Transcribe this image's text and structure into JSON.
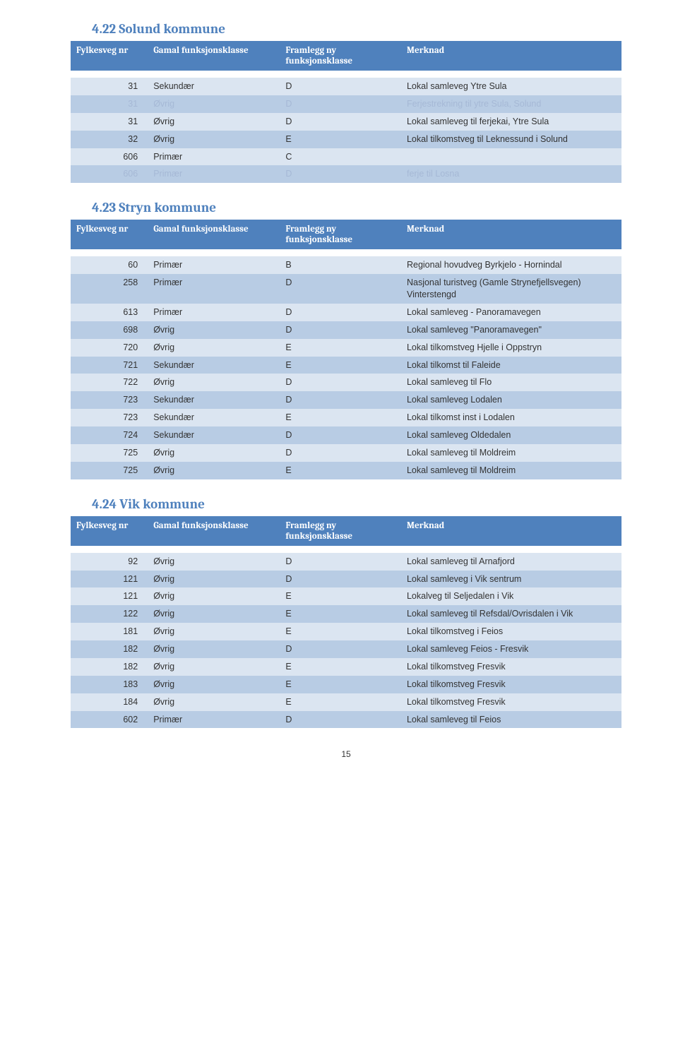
{
  "colors": {
    "header_bg": "#4f81bd",
    "header_text": "#ffffff",
    "row_odd_bg": "#dbe5f1",
    "row_even_bg": "#b8cce4",
    "muted_text": "#a6b9d6",
    "title_color": "#4f81bd",
    "body_bg": "#ffffff"
  },
  "typography": {
    "title_fontsize": 19,
    "header_fontsize": 13,
    "cell_fontsize": 12.5
  },
  "page_number": "15",
  "columns": [
    {
      "key": "nr",
      "label": "Fylkesveg\nnr",
      "width": "14%"
    },
    {
      "key": "gamal",
      "label": "Gamal\nfunksjonsklasse",
      "width": "24%"
    },
    {
      "key": "framlegg",
      "label": "Framlegg ny\nfunksjonsklasse",
      "width": "22%"
    },
    {
      "key": "merknad",
      "label": "Merknad",
      "width": "40%"
    }
  ],
  "column_headers": {
    "h1": "Fylkesveg nr",
    "h2": "Gamal funksjonsklasse",
    "h3": "Framlegg ny funksjonsklasse",
    "h4": "Merknad"
  },
  "sections": {
    "s1": {
      "title": "4.22 Solund kommune",
      "rows": [
        {
          "nr": "31",
          "gamal": "Sekundær",
          "framlegg": "D",
          "merknad": "Lokal samleveg Ytre Sula",
          "odd": true
        },
        {
          "nr": "31",
          "gamal": "Øvrig",
          "framlegg": "D",
          "merknad": "Ferjestrekning til ytre Sula, Solund",
          "odd": false,
          "muted": true
        },
        {
          "nr": "31",
          "gamal": "Øvrig",
          "framlegg": "D",
          "merknad": "Lokal samleveg til ferjekai, Ytre Sula",
          "odd": true
        },
        {
          "nr": "32",
          "gamal": "Øvrig",
          "framlegg": "E",
          "merknad": "Lokal tilkomstveg til Leknessund i Solund",
          "odd": false
        },
        {
          "nr": "606",
          "gamal": "Primær",
          "framlegg": "C",
          "merknad": "",
          "odd": true
        },
        {
          "nr": "606",
          "gamal": "Primær",
          "framlegg": "D",
          "merknad": "ferje til Losna",
          "odd": false,
          "muted": true
        }
      ]
    },
    "s2": {
      "title": "4.23 Stryn kommune",
      "rows": [
        {
          "nr": "60",
          "gamal": "Primær",
          "framlegg": "B",
          "merknad": "Regional hovudveg Byrkjelo - Hornindal",
          "odd": true
        },
        {
          "nr": "258",
          "gamal": "Primær",
          "framlegg": "D",
          "merknad": "Nasjonal turistveg (Gamle Strynefjellsvegen) Vinterstengd",
          "odd": false
        },
        {
          "nr": "613",
          "gamal": "Primær",
          "framlegg": "D",
          "merknad": "Lokal samleveg - Panoramavegen",
          "odd": true
        },
        {
          "nr": "698",
          "gamal": "Øvrig",
          "framlegg": "D",
          "merknad": "Lokal samleveg \"Panoramavegen\"",
          "odd": false
        },
        {
          "nr": "720",
          "gamal": "Øvrig",
          "framlegg": "E",
          "merknad": "Lokal tilkomstveg Hjelle i Oppstryn",
          "odd": true
        },
        {
          "nr": "721",
          "gamal": "Sekundær",
          "framlegg": "E",
          "merknad": "Lokal tilkomst til Faleide",
          "odd": false
        },
        {
          "nr": "722",
          "gamal": "Øvrig",
          "framlegg": "D",
          "merknad": "Lokal samleveg til Flo",
          "odd": true
        },
        {
          "nr": "723",
          "gamal": "Sekundær",
          "framlegg": "D",
          "merknad": "Lokal samleveg Lodalen",
          "odd": false
        },
        {
          "nr": "723",
          "gamal": "Sekundær",
          "framlegg": "E",
          "merknad": "Lokal tilkomst inst i  Lodalen",
          "odd": true
        },
        {
          "nr": "724",
          "gamal": "Sekundær",
          "framlegg": "D",
          "merknad": "Lokal samleveg Oldedalen",
          "odd": false
        },
        {
          "nr": "725",
          "gamal": "Øvrig",
          "framlegg": "D",
          "merknad": "Lokal samleveg til Moldreim",
          "odd": true
        },
        {
          "nr": "725",
          "gamal": "Øvrig",
          "framlegg": "E",
          "merknad": "Lokal samleveg til Moldreim",
          "odd": false
        }
      ]
    },
    "s3": {
      "title": "4.24 Vik kommune",
      "rows": [
        {
          "nr": "92",
          "gamal": "Øvrig",
          "framlegg": "D",
          "merknad": "Lokal samleveg til Arnafjord",
          "odd": true
        },
        {
          "nr": "121",
          "gamal": "Øvrig",
          "framlegg": "D",
          "merknad": "Lokal samleveg i Vik sentrum",
          "odd": false
        },
        {
          "nr": "121",
          "gamal": "Øvrig",
          "framlegg": "E",
          "merknad": "Lokalveg til Seljedalen i Vik",
          "odd": true
        },
        {
          "nr": "122",
          "gamal": "Øvrig",
          "framlegg": "E",
          "merknad": "Lokal samleveg til Refsdal/Ovrisdalen i Vik",
          "odd": false
        },
        {
          "nr": "181",
          "gamal": "Øvrig",
          "framlegg": "E",
          "merknad": "Lokal tilkomstveg i Feios",
          "odd": true
        },
        {
          "nr": "182",
          "gamal": "Øvrig",
          "framlegg": "D",
          "merknad": "Lokal samleveg Feios - Fresvik",
          "odd": false
        },
        {
          "nr": "182",
          "gamal": "Øvrig",
          "framlegg": "E",
          "merknad": "Lokal tilkomstveg Fresvik",
          "odd": true
        },
        {
          "nr": "183",
          "gamal": "Øvrig",
          "framlegg": "E",
          "merknad": "Lokal tilkomstveg Fresvik",
          "odd": false
        },
        {
          "nr": "184",
          "gamal": "Øvrig",
          "framlegg": "E",
          "merknad": "Lokal tilkomstveg Fresvik",
          "odd": true
        },
        {
          "nr": "602",
          "gamal": "Primær",
          "framlegg": "D",
          "merknad": "Lokal samleveg til Feios",
          "odd": false
        }
      ]
    }
  }
}
